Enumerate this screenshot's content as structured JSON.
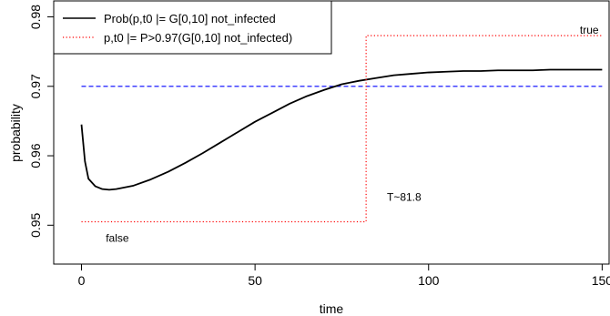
{
  "chart_data": {
    "type": "line",
    "xlabel": "time",
    "ylabel": "probability",
    "xlim": [
      -8,
      152
    ],
    "ylim": [
      0.9444,
      0.9823
    ],
    "x_ticks": [
      0,
      50,
      100,
      150
    ],
    "y_ticks": [
      0.95,
      0.96,
      0.97,
      0.98
    ],
    "x_tick_labels": [
      "0",
      "50",
      "100",
      "150"
    ],
    "y_tick_labels": [
      "0.95",
      "0.96",
      "0.97",
      "0.98"
    ],
    "grid": false,
    "legend_position": "top-left",
    "series": [
      {
        "name": "Prob(p,t0 |= G[0,10] not_infected",
        "color": "#000000",
        "style": "solid",
        "x": [
          0,
          1,
          2,
          4,
          6,
          8,
          10,
          15,
          20,
          25,
          30,
          35,
          40,
          45,
          50,
          55,
          60,
          65,
          70,
          75,
          80,
          85,
          90,
          95,
          100,
          105,
          110,
          115,
          120,
          125,
          130,
          135,
          140,
          145,
          150
        ],
        "y": [
          0.9645,
          0.9592,
          0.9567,
          0.9556,
          0.9552,
          0.9551,
          0.9552,
          0.9557,
          0.9566,
          0.9577,
          0.959,
          0.9604,
          0.9619,
          0.9634,
          0.9649,
          0.9662,
          0.9675,
          0.9686,
          0.9695,
          0.9703,
          0.9708,
          0.9712,
          0.9716,
          0.9718,
          0.972,
          0.9721,
          0.9722,
          0.9722,
          0.9723,
          0.9723,
          0.9723,
          0.9724,
          0.9724,
          0.9724,
          0.9724
        ]
      },
      {
        "name": "p,t0 |= P>0.97(G[0,10] not_infected)",
        "color": "#ff0000",
        "style": "dotted",
        "x": [
          0,
          82,
          82,
          150
        ],
        "y": [
          0.9505,
          0.9505,
          0.9773,
          0.9773
        ]
      }
    ],
    "reference_lines": [
      {
        "axis": "y",
        "value": 0.97,
        "color": "#0000ff",
        "style": "dashed"
      }
    ],
    "annotations": [
      {
        "text": "true",
        "x": 149,
        "y": 0.9776
      },
      {
        "text": "false",
        "x": 7,
        "y": 0.9476
      },
      {
        "text": "T~81.8",
        "x": 88,
        "y": 0.9535
      }
    ]
  }
}
